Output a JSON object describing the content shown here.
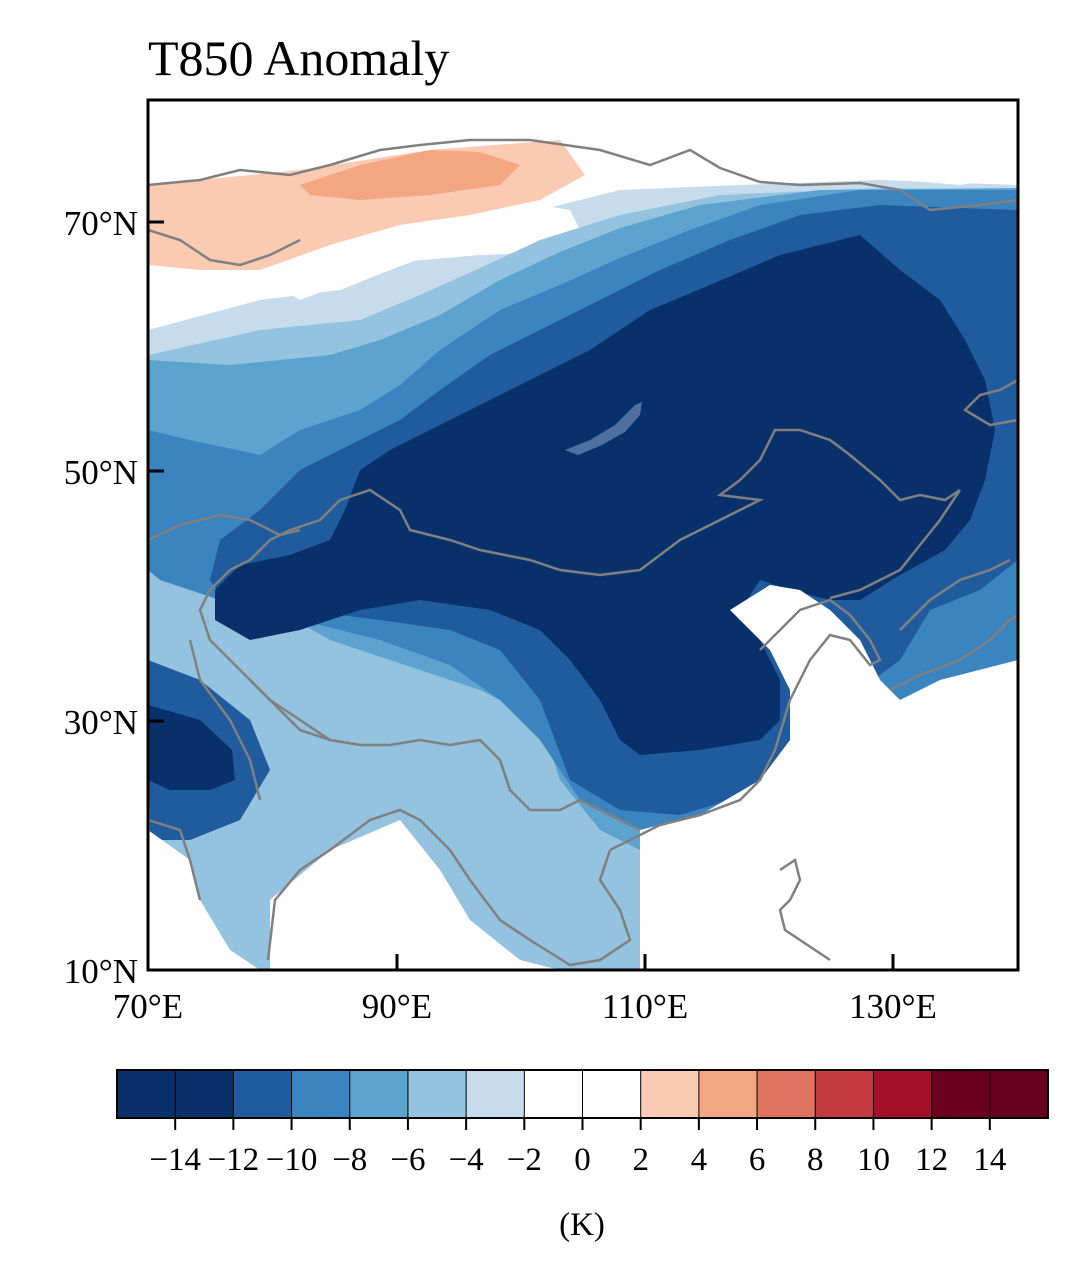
{
  "title": "T850 Anomaly",
  "lat_labels": [
    "70°N",
    "50°N",
    "30°N",
    "10°N"
  ],
  "lon_labels": [
    "70°E",
    "90°E",
    "110°E",
    "130°E"
  ],
  "colorbar": {
    "unit_label": "(K)",
    "tick_labels": [
      "−14",
      "−12",
      "−10",
      "−8",
      "−6",
      "−4",
      "−2",
      "0",
      "2",
      "4",
      "6",
      "8",
      "10",
      "12",
      "14"
    ],
    "bin_colors": [
      "#08306b",
      "#08306b",
      "#1f5b9d",
      "#3a84c0",
      "#5da3cf",
      "#93c3df",
      "#c6dcec",
      "#ffffff",
      "#ffffff",
      "#fbcab2",
      "#f4a582",
      "#df735d",
      "#c43a3e",
      "#a31027",
      "#6a001f",
      "#67001f"
    ]
  },
  "map_colors": {
    "coast": "#808080",
    "land_outline": "#808080",
    "lake": "#4f6f9f"
  },
  "extent": {
    "lon": [
      70,
      140
    ],
    "lat": [
      10,
      80
    ]
  }
}
